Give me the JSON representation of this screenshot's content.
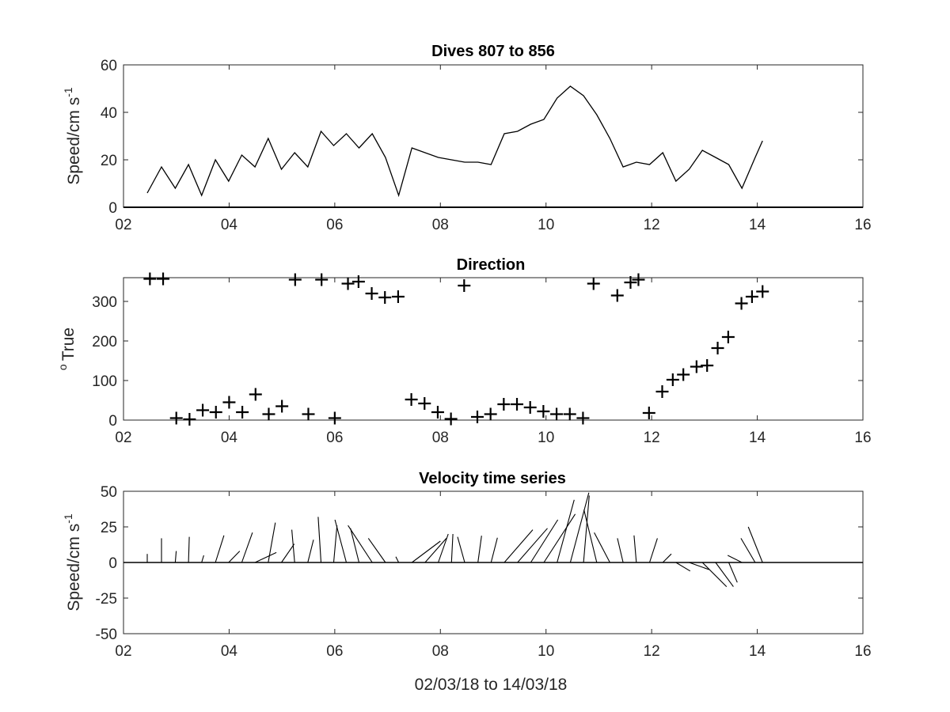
{
  "figure": {
    "xlabel": "02/03/18 to 14/03/18"
  },
  "chart_data": [
    {
      "type": "line",
      "title": "Dives 807 to 856",
      "ylabel": "Speed/cm s",
      "ylabel_superscript": "-1",
      "xlim": [
        2,
        16
      ],
      "ylim": [
        0,
        60
      ],
      "xticks": [
        "02",
        "04",
        "06",
        "08",
        "10",
        "12",
        "14",
        "16"
      ],
      "yticks": [
        "0",
        "20",
        "40",
        "60"
      ],
      "grid": false,
      "series": [
        {
          "x": [
            2.45,
            2.72,
            2.98,
            3.23,
            3.48,
            3.74,
            3.99,
            4.24,
            4.49,
            4.74,
            4.99,
            5.24,
            5.49,
            5.74,
            5.98,
            6.22,
            6.46,
            6.71,
            6.96,
            7.21,
            7.46,
            7.71,
            7.96,
            8.21,
            8.46,
            8.71,
            8.96,
            9.21,
            9.46,
            9.71,
            9.96,
            10.21,
            10.46,
            10.71,
            10.96,
            11.21,
            11.46,
            11.71,
            11.96,
            12.21,
            12.46,
            12.71,
            12.96,
            13.21,
            13.46,
            13.71,
            13.96,
            14.1
          ],
          "y": [
            6,
            17,
            8,
            18,
            5,
            20,
            11,
            22,
            17,
            29,
            16,
            23,
            17,
            32,
            26,
            31,
            25,
            31,
            21,
            5,
            25,
            23,
            21,
            20,
            19,
            19,
            18,
            31,
            32,
            35,
            37,
            46,
            51,
            47,
            39,
            29,
            17,
            19,
            18,
            23,
            11,
            16,
            24,
            21,
            18,
            8,
            21,
            28
          ]
        }
      ]
    },
    {
      "type": "scatter",
      "title": "Direction",
      "ylabel": "True",
      "ylabel_superscript": "o",
      "xlim": [
        2,
        16
      ],
      "ylim": [
        0,
        360
      ],
      "xticks": [
        "02",
        "04",
        "06",
        "08",
        "10",
        "12",
        "14",
        "16"
      ],
      "yticks": [
        "0",
        "100",
        "200",
        "300"
      ],
      "marker": "+",
      "grid": false,
      "series": [
        {
          "x": [
            2.5,
            2.75,
            3.0,
            3.25,
            3.5,
            3.75,
            4.0,
            4.25,
            4.5,
            4.75,
            5.0,
            5.25,
            5.5,
            5.75,
            6.0,
            6.25,
            6.45,
            6.7,
            6.95,
            7.2,
            7.45,
            7.7,
            7.95,
            8.2,
            8.45,
            8.7,
            8.95,
            9.2,
            9.45,
            9.7,
            9.95,
            10.2,
            10.45,
            10.7,
            10.9,
            11.35,
            11.6,
            11.75,
            11.95,
            12.2,
            12.4,
            12.6,
            12.85,
            13.05,
            13.25,
            13.45,
            13.7,
            13.9,
            14.1
          ],
          "y": [
            357,
            357,
            5,
            2,
            25,
            20,
            45,
            20,
            65,
            15,
            35,
            355,
            15,
            355,
            5,
            345,
            350,
            320,
            310,
            312,
            52,
            42,
            20,
            3,
            340,
            8,
            15,
            40,
            40,
            32,
            22,
            15,
            15,
            5,
            345,
            315,
            348,
            355,
            18,
            72,
            102,
            115,
            135,
            138,
            182,
            210,
            295,
            312,
            325
          ]
        }
      ]
    },
    {
      "type": "line",
      "subtype": "stick-plot",
      "title": "Velocity time series",
      "ylabel": "Speed/cm s",
      "ylabel_superscript": "-1",
      "xlabel": "02/03/18 to 14/03/18",
      "xlim": [
        2,
        16
      ],
      "ylim": [
        -50,
        50
      ],
      "xticks": [
        "02",
        "04",
        "06",
        "08",
        "10",
        "12",
        "14",
        "16"
      ],
      "yticks": [
        "50",
        "25",
        "0",
        "-25",
        "-50"
      ],
      "grid": false,
      "baseline": 0,
      "units_note": "stick length and direction from speed and direction series",
      "sticks": {
        "x0": [
          2.45,
          2.72,
          2.98,
          3.23,
          3.48,
          3.74,
          3.99,
          4.24,
          4.49,
          4.74,
          4.99,
          5.24,
          5.49,
          5.74,
          5.98,
          6.22,
          6.46,
          6.71,
          6.96,
          7.21,
          7.46,
          7.71,
          7.96,
          8.21,
          8.46,
          8.71,
          8.96,
          9.21,
          9.46,
          9.71,
          9.96,
          10.21,
          10.46,
          10.71,
          10.96,
          11.21,
          11.46,
          11.71,
          11.96,
          12.21,
          12.46,
          12.71,
          12.96,
          13.21,
          13.46,
          13.71,
          13.96,
          14.1
        ],
        "u": [
          0,
          0,
          0.7,
          0.6,
          1.5,
          6,
          7.8,
          7.5,
          15,
          5,
          9,
          -2,
          4,
          -2,
          2.3,
          -8,
          -6,
          -17,
          -12,
          -2,
          20,
          15,
          7,
          1,
          -5,
          2.6,
          4.4,
          20,
          21,
          19,
          22,
          12,
          13,
          4,
          -9,
          -11,
          -4,
          -1.6,
          5.5,
          6,
          10,
          14,
          17,
          12.5,
          6,
          -10,
          -10,
          -10
        ],
        "v": [
          6,
          17,
          8,
          18,
          5,
          19,
          8,
          21,
          7,
          28,
          13,
          23,
          16,
          32,
          26,
          30,
          24,
          26,
          17,
          4,
          15,
          17,
          20,
          20,
          18,
          18.8,
          17.4,
          23,
          24,
          30,
          34,
          44,
          49,
          47,
          37,
          21,
          17,
          19,
          17,
          6,
          -6,
          -5,
          -17,
          -17,
          -14,
          5,
          17,
          25
        ]
      }
    }
  ]
}
